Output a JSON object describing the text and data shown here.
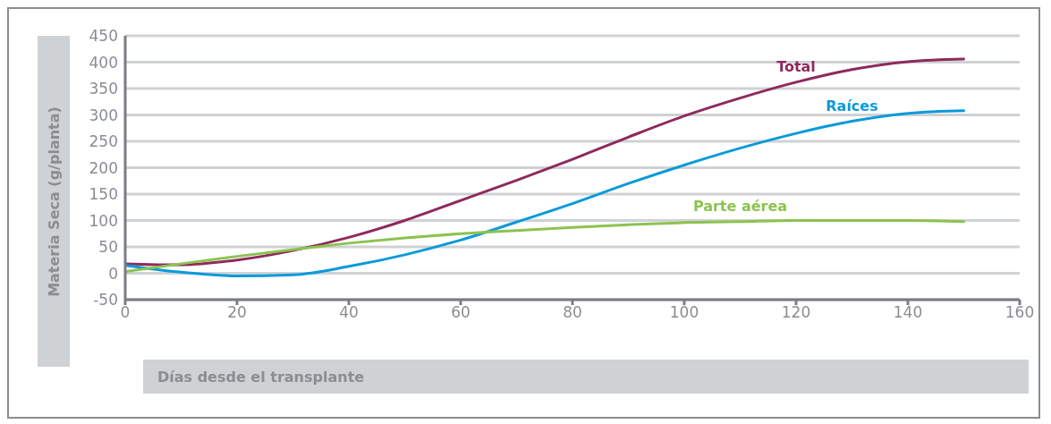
{
  "chart_data": {
    "type": "line",
    "xlabel": "Días desde el transplante",
    "ylabel": "Materia Seca (g/planta)",
    "x": [
      0,
      10,
      20,
      30,
      40,
      50,
      60,
      70,
      80,
      90,
      100,
      110,
      120,
      130,
      140,
      150
    ],
    "series": [
      {
        "name": "Total",
        "color": "#8e2a5b",
        "values": [
          18,
          16,
          25,
          43,
          68,
          100,
          138,
          176,
          216,
          258,
          298,
          332,
          362,
          386,
          401,
          406
        ]
      },
      {
        "name": "Raíces",
        "color": "#0a9ad9",
        "values": [
          15,
          2,
          -5,
          -3,
          13,
          35,
          63,
          97,
          132,
          170,
          205,
          237,
          265,
          288,
          303,
          308
        ]
      },
      {
        "name": "Parte aérea",
        "color": "#8cc34f",
        "values": [
          3,
          18,
          32,
          45,
          57,
          67,
          75,
          81,
          87,
          92,
          96,
          98,
          100,
          100,
          100,
          98
        ]
      }
    ],
    "xlim": [
      0,
      160
    ],
    "xticks": [
      0,
      20,
      40,
      60,
      80,
      100,
      120,
      140,
      160
    ],
    "ylim": [
      -50,
      450
    ],
    "yticks": [
      -50,
      0,
      50,
      100,
      150,
      200,
      250,
      300,
      350,
      400,
      450
    ],
    "grid": "y",
    "marker": "none",
    "line_style": "solid"
  }
}
